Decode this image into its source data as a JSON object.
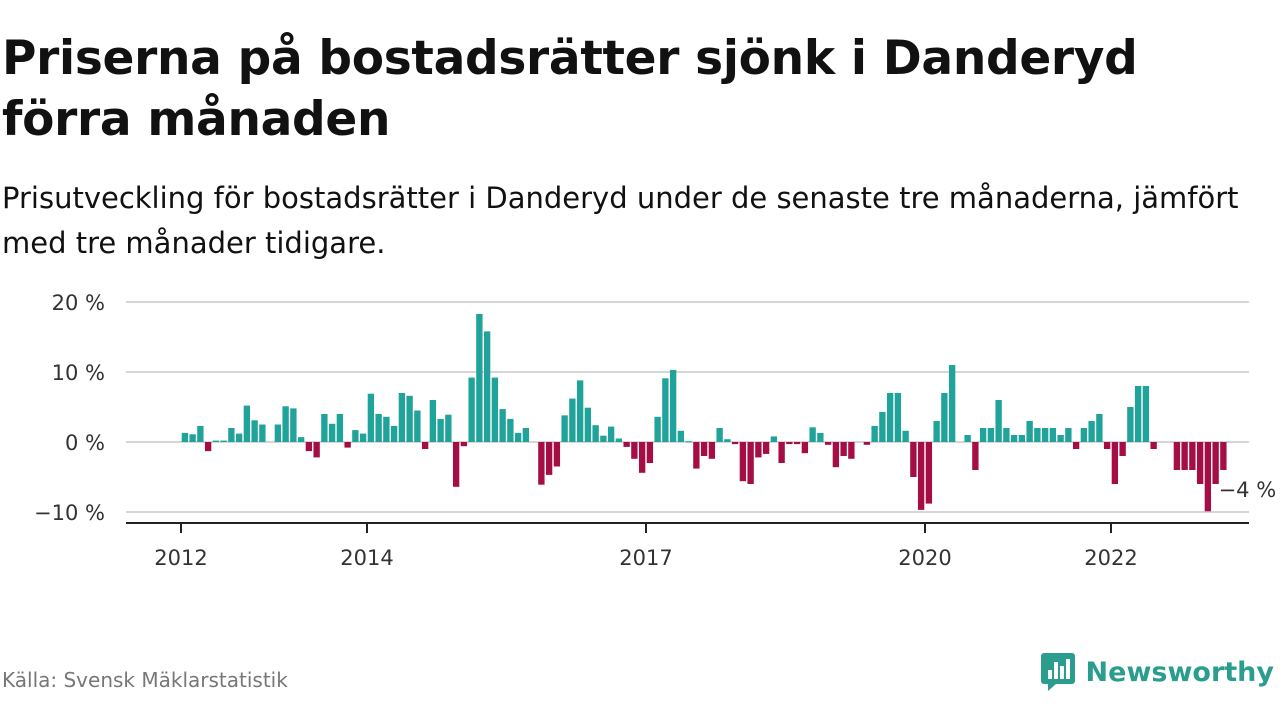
{
  "title": "Priserna på bostadsrätter sjönk i Danderyd förra månaden",
  "subtitle": "Prisutveckling för bostadsrätter i Danderyd under de senaste tre månaderna, jämfört med tre månader tidigare.",
  "source": "Källa: Svensk Mäklarstatistik",
  "brand": "Newsworthy",
  "colors": {
    "positive": "#1fa39a",
    "negative": "#a50d45",
    "brand": "#2a9d8f"
  },
  "chart_data": {
    "type": "bar",
    "unit": "%",
    "ylim": [
      -11,
      21
    ],
    "yticks": [
      20,
      10,
      0,
      -10
    ],
    "ytick_labels": [
      "20 %",
      "10 %",
      "0 %",
      "−10 %"
    ],
    "xlim": [
      2011.5,
      2023.75
    ],
    "xticks": [
      2012,
      2014,
      2017,
      2020,
      2022
    ],
    "xtick_labels": [
      "2012",
      "2014",
      "2017",
      "2020",
      "2022"
    ],
    "grid": true,
    "start": "2012-01",
    "values": [
      1.3,
      1.1,
      2.3,
      -1.3,
      0.2,
      0.2,
      2.0,
      1.2,
      5.2,
      3.1,
      2.5,
      0,
      2.5,
      5.1,
      4.8,
      0.7,
      -1.3,
      -2.2,
      4.0,
      2.6,
      4.0,
      -0.8,
      1.7,
      1.2,
      6.9,
      4.0,
      3.6,
      2.3,
      7.0,
      6.6,
      4.5,
      -1.0,
      6.0,
      3.3,
      3.9,
      -6.4,
      -0.6,
      9.2,
      18.3,
      15.8,
      9.2,
      4.7,
      3.3,
      1.3,
      2.0,
      0,
      -6.1,
      -4.7,
      -3.5,
      3.8,
      6.2,
      8.8,
      4.9,
      2.4,
      0.9,
      2.2,
      0.5,
      -0.7,
      -2.4,
      -4.4,
      -3.0,
      3.6,
      9.1,
      10.3,
      1.6,
      0.1,
      -3.8,
      -2.0,
      -2.4,
      2.0,
      0.4,
      -0.3,
      -5.6,
      -6.0,
      -2.2,
      -1.7,
      0.8,
      -3.0,
      -0.3,
      -0.3,
      -1.6,
      2.1,
      1.3,
      -0.4,
      -3.6,
      -2.0,
      -2.4,
      0,
      -0.4,
      2.3,
      4.3,
      7.0,
      7.0,
      1.6,
      -5.0,
      -9.7,
      -8.8,
      3.0,
      7.0,
      11.0,
      0,
      1.0,
      -4.0,
      2.0,
      2.0,
      6.0,
      2.0,
      1.0,
      1.0,
      3.0,
      2.0,
      2.0,
      2.0,
      1.0,
      2.0,
      -1.0,
      2.0,
      3.0,
      4.0,
      -1.0,
      -6.0,
      -2.0,
      5.0,
      8.0,
      8.0,
      -1.0,
      0,
      0,
      -4.0,
      -4.0,
      -4.0,
      -6.0,
      -9.9,
      -6.0,
      -4.0
    ],
    "annotation": {
      "label": "−4 %",
      "value": -4
    }
  }
}
